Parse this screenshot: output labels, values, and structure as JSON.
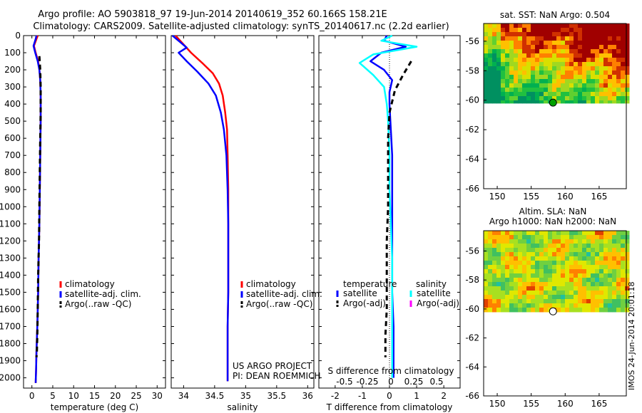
{
  "header": {
    "line1": "Argo profile: AO 5903818_97 19-Jun-2014 20140619_352 60.166S 158.21E",
    "line2": "Climatology: CARS2009. Satellite-adjusted climatology: synTS_20140617.nc (2.2d earlier)"
  },
  "colors": {
    "climatology": "#ff0000",
    "satellite": "#0000ff",
    "argo": "#000000",
    "sat_salinity": "#00ffff",
    "argo_salinity": "#ff00ff"
  },
  "credits": {
    "project": "US ARGO PROJECT",
    "pi": "PI: DEAN ROEMMICH",
    "stamp": "IMOS 24-Jun-2014 20:01:18"
  },
  "chart_data": [
    {
      "id": "temperature",
      "type": "line",
      "xlabel": "temperature (deg C)",
      "ylabel": "",
      "xlim": [
        -2,
        32
      ],
      "ylim": [
        2060,
        0
      ],
      "xticks": [
        0,
        5,
        10,
        15,
        20,
        25,
        30
      ],
      "yticks": [
        0,
        100,
        200,
        300,
        400,
        500,
        600,
        700,
        800,
        900,
        1000,
        1100,
        1200,
        1300,
        1400,
        1500,
        1600,
        1700,
        1800,
        1900,
        2000
      ],
      "legend": [
        "climatology",
        "satellite-adj. clim.",
        "Argo(..raw -QC)"
      ],
      "series": [
        {
          "name": "climatology",
          "color": "#ff0000",
          "dashed": false,
          "x": [
            1.4,
            1.1,
            0.5,
            0.9,
            1.5,
            1.8,
            2.0,
            2.1,
            2.1,
            2.0,
            1.9,
            1.8,
            1.6,
            1.5,
            1.3,
            1.1,
            1.0,
            0.9
          ],
          "y": [
            0,
            20,
            60,
            100,
            150,
            200,
            260,
            350,
            500,
            700,
            900,
            1100,
            1300,
            1500,
            1700,
            1850,
            1950,
            2030
          ]
        },
        {
          "name": "satellite-adj. clim.",
          "color": "#0000ff",
          "dashed": false,
          "x": [
            1.1,
            0.9,
            0.4,
            0.8,
            1.4,
            1.8,
            2.0,
            2.1,
            2.1,
            2.0,
            1.9,
            1.8,
            1.6,
            1.5,
            1.3,
            1.1,
            1.0,
            0.9
          ],
          "y": [
            0,
            20,
            60,
            100,
            150,
            200,
            260,
            350,
            500,
            700,
            900,
            1100,
            1300,
            1500,
            1700,
            1850,
            1950,
            2030
          ]
        },
        {
          "name": "Argo(..raw -QC)",
          "color": "#000000",
          "dashed": true,
          "x": [
            1.8,
            2.0,
            2.1,
            2.1,
            2.0,
            1.9,
            1.8,
            1.7,
            1.5,
            1.4,
            1.3,
            1.2,
            1.1
          ],
          "y": [
            120,
            200,
            300,
            450,
            600,
            800,
            1000,
            1200,
            1400,
            1600,
            1750,
            1850,
            1880
          ]
        }
      ]
    },
    {
      "id": "salinity",
      "type": "line",
      "xlabel": "salinity",
      "ylabel": "",
      "xlim": [
        33.8,
        36.1
      ],
      "ylim": [
        2060,
        0
      ],
      "xticks": [
        34,
        34.5,
        35,
        35.5,
        36
      ],
      "legend": [
        "climatology",
        "satellite-adj. clim.",
        "Argo(..raw -QC)"
      ],
      "series": [
        {
          "name": "climatology",
          "color": "#ff0000",
          "dashed": false,
          "x": [
            33.87,
            33.97,
            34.12,
            34.3,
            34.47,
            34.57,
            34.63,
            34.67,
            34.7,
            34.71,
            34.72,
            34.72,
            34.72,
            34.72,
            34.71,
            34.71,
            34.71
          ],
          "y": [
            0,
            40,
            100,
            160,
            220,
            280,
            350,
            450,
            550,
            700,
            900,
            1100,
            1300,
            1500,
            1700,
            1900,
            2020
          ]
        },
        {
          "name": "satellite-adj. clim.",
          "color": "#0000ff",
          "dashed": false,
          "x": [
            33.82,
            34.05,
            33.92,
            34.05,
            34.22,
            34.4,
            34.52,
            34.6,
            34.65,
            34.69,
            34.71,
            34.72,
            34.72,
            34.72,
            34.71,
            34.71,
            34.71
          ],
          "y": [
            0,
            70,
            100,
            150,
            210,
            280,
            350,
            450,
            550,
            700,
            900,
            1100,
            1300,
            1500,
            1700,
            1900,
            2020
          ]
        }
      ]
    },
    {
      "id": "difference",
      "type": "line",
      "xlabel": "T difference from climatology",
      "xlabel_top": "S difference from climatology",
      "xlim": [
        -2.6,
        2.6
      ],
      "ylim": [
        2060,
        0
      ],
      "xticks": [
        -2,
        -1,
        0,
        1,
        2
      ],
      "xticks_top": [
        -0.5,
        -0.25,
        0,
        0.25,
        0.5
      ],
      "legend_groups": {
        "temperature": "temperature",
        "salinity": "salinity"
      },
      "legend": [
        "satellite",
        "Argo(-adj)",
        "satellite",
        "Argo(-adj)"
      ],
      "series": [
        {
          "name": "satellite",
          "group": "temperature",
          "color": "#0000ff",
          "dashed": false,
          "x": [
            -0.1,
            -0.2,
            0.6,
            -0.3,
            -0.7,
            -0.2,
            0.1,
            0.0,
            0.0,
            0.05,
            0.1,
            0.1,
            0.1,
            0.1,
            0.1,
            0.15,
            0.15,
            0.15,
            0.15
          ],
          "y": [
            0,
            30,
            65,
            100,
            150,
            200,
            260,
            330,
            400,
            550,
            700,
            900,
            1100,
            1300,
            1500,
            1700,
            1800,
            1900,
            2000
          ]
        },
        {
          "name": "satellite",
          "group": "salinity",
          "color": "#00ffff",
          "dashed": false,
          "x": [
            0.1,
            -0.3,
            1.0,
            -0.6,
            -1.1,
            -0.6,
            -0.2,
            -0.1,
            -0.05,
            0.0,
            0.0,
            0.05,
            0.1,
            0.1,
            0.1,
            0.1,
            0.1
          ],
          "y": [
            0,
            30,
            65,
            110,
            160,
            230,
            300,
            400,
            500,
            700,
            900,
            1100,
            1300,
            1500,
            1700,
            1850,
            2000
          ]
        },
        {
          "name": "Argo(-adj)",
          "group": "temperature",
          "color": "#000000",
          "dashed": true,
          "x": [
            0.8,
            0.5,
            0.2,
            0.0,
            -0.05,
            -0.05,
            -0.05,
            -0.1,
            -0.1,
            -0.1,
            -0.15,
            -0.15
          ],
          "y": [
            150,
            230,
            320,
            450,
            600,
            800,
            1000,
            1200,
            1400,
            1600,
            1750,
            1880
          ]
        }
      ]
    },
    {
      "id": "sst_map",
      "type": "heatmap",
      "title": "sat. SST: NaN Argo: 0.504",
      "xlim": [
        148,
        169
      ],
      "ylim": [
        -66,
        -54.8
      ],
      "xticks": [
        150,
        155,
        160,
        165
      ],
      "yticks": [
        -56,
        -58,
        -60,
        -62,
        -64,
        -66
      ],
      "marker": {
        "lon": 158.21,
        "lat": -60.166
      }
    },
    {
      "id": "sla_map",
      "type": "heatmap",
      "title_line1": "Altim. SLA: NaN",
      "title_line2": "Argo h1000: NaN h2000: NaN",
      "xlim": [
        148,
        169
      ],
      "ylim": [
        -66,
        -54.6
      ],
      "xticks": [
        150,
        155,
        160,
        165
      ],
      "yticks": [
        -56,
        -58,
        -60,
        -62,
        -64,
        -66
      ],
      "marker": {
        "lon": 158.21,
        "lat": -60.166
      }
    }
  ]
}
